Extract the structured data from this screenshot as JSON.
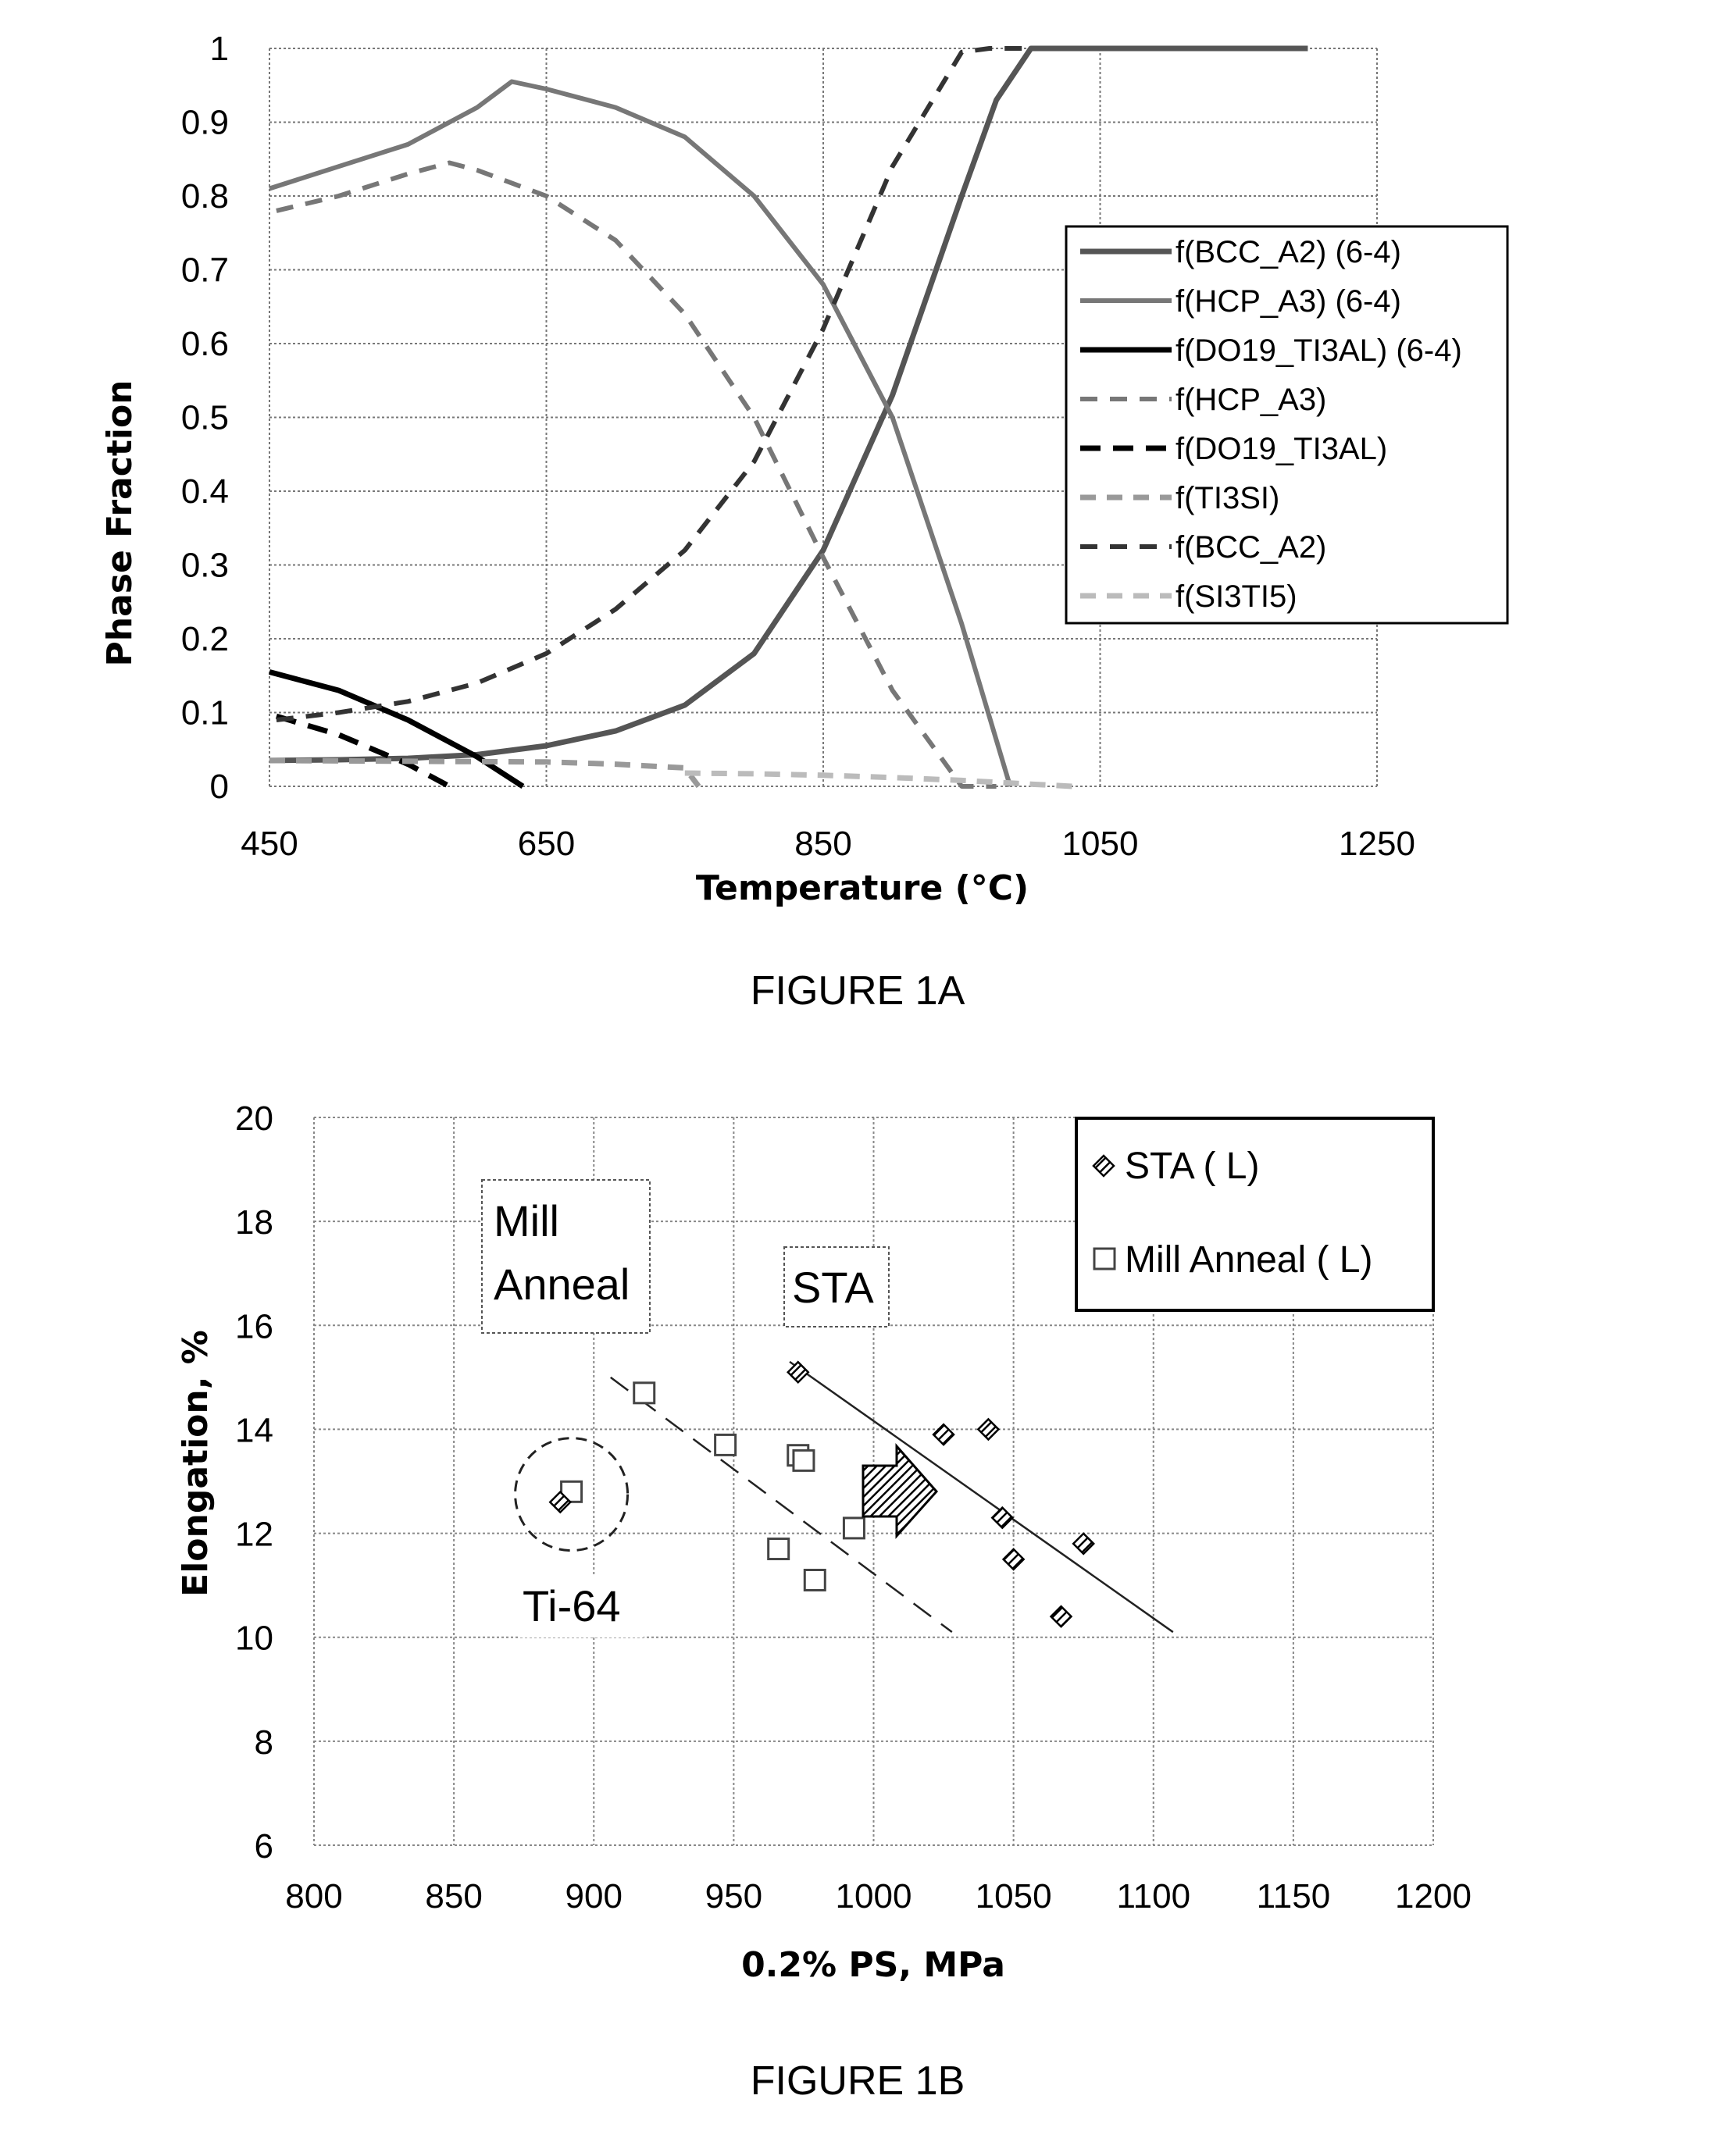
{
  "chart_data": [
    {
      "type": "line",
      "title": "",
      "caption": "FIGURE 1A",
      "xlabel": "Temperature (°C)",
      "ylabel": "Phase Fraction",
      "xlim": [
        450,
        1250
      ],
      "ylim": [
        0,
        1
      ],
      "x_ticks": [
        "450",
        "650",
        "850",
        "1050",
        "1250"
      ],
      "y_ticks": [
        "0",
        "0.1",
        "0.2",
        "0.3",
        "0.4",
        "0.5",
        "0.6",
        "0.7",
        "0.8",
        "0.9",
        "1"
      ],
      "grid": true,
      "legend_position": "right",
      "series": [
        {
          "name": "f(BCC_A2) (6-4)",
          "style": "solid",
          "color": "#555555",
          "x": [
            450,
            500,
            550,
            600,
            650,
            700,
            750,
            800,
            850,
            900,
            950,
            975,
            1000,
            1100,
            1200
          ],
          "y": [
            0.035,
            0.036,
            0.038,
            0.043,
            0.055,
            0.075,
            0.11,
            0.18,
            0.32,
            0.53,
            0.8,
            0.93,
            1.0,
            1.0,
            1.0
          ]
        },
        {
          "name": "f(HCP_A3) (6-4)",
          "style": "solid",
          "color": "#777777",
          "x": [
            450,
            500,
            550,
            600,
            625,
            650,
            700,
            750,
            800,
            850,
            900,
            950,
            985
          ],
          "y": [
            0.81,
            0.84,
            0.87,
            0.92,
            0.955,
            0.945,
            0.92,
            0.88,
            0.8,
            0.68,
            0.5,
            0.22,
            0.0
          ]
        },
        {
          "name": "f(DO19_TI3AL) (6-4)",
          "style": "solid",
          "color": "#000000",
          "x": [
            450,
            500,
            550,
            600,
            633
          ],
          "y": [
            0.155,
            0.13,
            0.09,
            0.04,
            0.0
          ]
        },
        {
          "name": "f(HCP_A3)",
          "style": "dashed",
          "color": "#777777",
          "x": [
            455,
            500,
            550,
            580,
            600,
            650,
            700,
            750,
            800,
            850,
            900,
            950,
            975
          ],
          "y": [
            0.78,
            0.8,
            0.83,
            0.845,
            0.835,
            0.8,
            0.74,
            0.64,
            0.5,
            0.31,
            0.13,
            0.0,
            0.0
          ]
        },
        {
          "name": "f(DO19_TI3AL)",
          "style": "dashed",
          "color": "#000000",
          "x": [
            455,
            500,
            550,
            580
          ],
          "y": [
            0.095,
            0.07,
            0.03,
            0.0
          ]
        },
        {
          "name": "f(TI3SI)",
          "style": "dashed",
          "color": "#999999",
          "x": [
            450,
            550,
            650,
            700,
            750,
            760
          ],
          "y": [
            0.035,
            0.034,
            0.033,
            0.03,
            0.025,
            0.0
          ]
        },
        {
          "name": "f(BCC_A2)",
          "style": "dashed",
          "color": "#333333",
          "x": [
            455,
            500,
            550,
            600,
            650,
            700,
            750,
            800,
            850,
            900,
            950,
            970,
            1000
          ],
          "y": [
            0.09,
            0.1,
            0.115,
            0.14,
            0.18,
            0.24,
            0.32,
            0.44,
            0.62,
            0.84,
            0.995,
            1.0,
            1.0
          ]
        },
        {
          "name": "f(SI3TI5)",
          "style": "dashed",
          "color": "#bbbbbb",
          "x": [
            750,
            800,
            850,
            900,
            950,
            1000,
            1030
          ],
          "y": [
            0.018,
            0.017,
            0.015,
            0.012,
            0.008,
            0.003,
            0.0
          ]
        }
      ]
    },
    {
      "type": "scatter",
      "title": "",
      "caption": "FIGURE 1B",
      "xlabel": "0.2% PS, MPa",
      "ylabel": "Elongation, %",
      "xlim": [
        800,
        1200
      ],
      "ylim": [
        6,
        20
      ],
      "x_ticks": [
        "800",
        "850",
        "900",
        "950",
        "1000",
        "1050",
        "1100",
        "1150",
        "1200"
      ],
      "y_ticks": [
        "6",
        "8",
        "10",
        "12",
        "14",
        "16",
        "18",
        "20"
      ],
      "grid": true,
      "legend_position": "top-right",
      "series": [
        {
          "name": "STA ( L)",
          "marker": "diamond-filled",
          "x": [
            973,
            1025,
            1041,
            1046,
            1050,
            1067,
            1075,
            888
          ],
          "y": [
            15.1,
            13.9,
            14.0,
            12.3,
            11.5,
            10.4,
            11.8,
            12.6
          ]
        },
        {
          "name": "Mill Anneal ( L)",
          "marker": "square-open",
          "x": [
            918,
            947,
            973,
            975,
            966,
            993,
            979,
            892
          ],
          "y": [
            14.7,
            13.7,
            13.5,
            13.4,
            11.7,
            12.1,
            11.1,
            12.8
          ]
        }
      ],
      "trendlines": [
        {
          "label": "STA",
          "style": "solid",
          "x": [
            970,
            1107
          ],
          "y": [
            15.3,
            10.1
          ]
        },
        {
          "label": "Mill Anneal",
          "style": "dashed",
          "x": [
            906,
            1028
          ],
          "y": [
            15.0,
            10.1
          ]
        }
      ],
      "annotations": {
        "mill_anneal_line1": "Mill",
        "mill_anneal_line2": "Anneal",
        "sta": "STA",
        "ti64": "Ti-64",
        "ti64_circle_center": [
          892,
          12.75
        ]
      }
    }
  ],
  "legend_style": {
    "f(BCC_A2) (6-4)": {
      "stroke": "#555555",
      "dash": "",
      "width": 7
    },
    "f(HCP_A3) (6-4)": {
      "stroke": "#777777",
      "dash": "",
      "width": 6
    },
    "f(DO19_TI3AL) (6-4)": {
      "stroke": "#000000",
      "dash": "",
      "width": 7
    },
    "f(HCP_A3)": {
      "stroke": "#777777",
      "dash": "22,16",
      "width": 6
    },
    "f(DO19_TI3AL)": {
      "stroke": "#000000",
      "dash": "26,16",
      "width": 7
    },
    "f(TI3SI)": {
      "stroke": "#999999",
      "dash": "20,14",
      "width": 7
    },
    "f(BCC_A2)": {
      "stroke": "#333333",
      "dash": "22,16",
      "width": 6
    },
    "f(SI3TI5)": {
      "stroke": "#bbbbbb",
      "dash": "20,14",
      "width": 7
    }
  }
}
